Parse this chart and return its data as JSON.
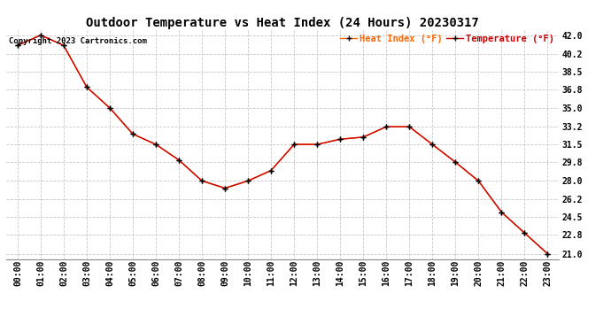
{
  "title": "Outdoor Temperature vs Heat Index (24 Hours) 20230317",
  "copyright": "Copyright 2023 Cartronics.com",
  "legend_heat": "Heat Index (°F)",
  "legend_temp": "Temperature (°F)",
  "hours": [
    "00:00",
    "01:00",
    "02:00",
    "03:00",
    "04:00",
    "05:00",
    "06:00",
    "07:00",
    "08:00",
    "09:00",
    "10:00",
    "11:00",
    "12:00",
    "13:00",
    "14:00",
    "15:00",
    "16:00",
    "17:00",
    "18:00",
    "19:00",
    "20:00",
    "21:00",
    "22:00",
    "23:00"
  ],
  "temperature": [
    41.0,
    42.0,
    41.0,
    37.0,
    35.0,
    32.5,
    31.5,
    30.0,
    28.0,
    27.3,
    28.0,
    29.0,
    31.5,
    31.5,
    32.0,
    32.2,
    33.2,
    33.2,
    31.5,
    29.8,
    28.0,
    25.0,
    23.0,
    21.0
  ],
  "heat_index": [
    41.0,
    42.0,
    41.0,
    37.0,
    35.0,
    32.5,
    31.5,
    30.0,
    28.0,
    27.3,
    28.0,
    29.0,
    31.5,
    31.5,
    32.0,
    32.2,
    33.2,
    33.2,
    31.5,
    29.8,
    28.0,
    25.0,
    23.0,
    21.0
  ],
  "yticks": [
    21.0,
    22.8,
    24.5,
    26.2,
    28.0,
    29.8,
    31.5,
    33.2,
    35.0,
    36.8,
    38.5,
    40.2,
    42.0
  ],
  "ylim": [
    20.5,
    42.5
  ],
  "heat_color": "#ff6600",
  "temp_color": "#cc0000",
  "marker_color": "black",
  "bg_color": "white",
  "grid_color": "#c8c8c8",
  "title_fontsize": 10,
  "tick_fontsize": 7,
  "copyright_fontsize": 6.5
}
